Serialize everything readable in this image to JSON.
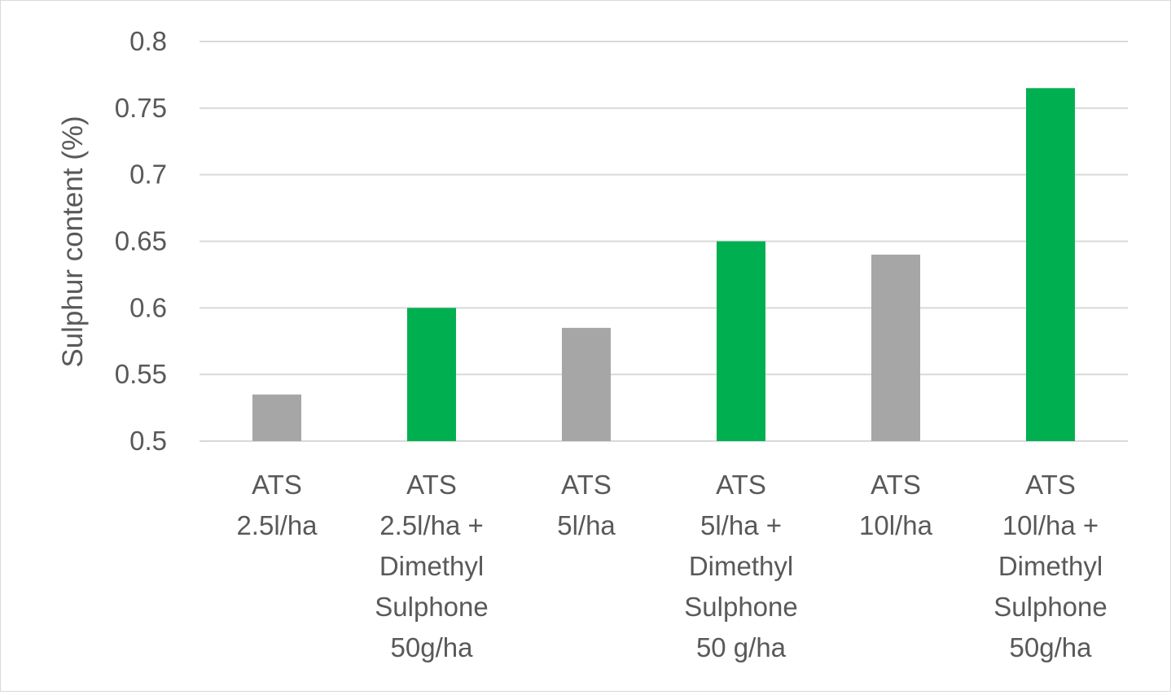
{
  "chart_data": {
    "type": "bar",
    "title": "",
    "xlabel": "",
    "ylabel": "Sulphur content (%)",
    "ylim": [
      0.5,
      0.8
    ],
    "yticks": [
      "0.5",
      "0.55",
      "0.6",
      "0.65",
      "0.7",
      "0.75",
      "0.8"
    ],
    "grid": true,
    "legend": "none",
    "categories": [
      [
        "ATS",
        "2.5l/ha"
      ],
      [
        "ATS",
        "2.5l/ha +",
        "Dimethyl",
        "Sulphone",
        "50g/ha"
      ],
      [
        "ATS",
        "5l/ha"
      ],
      [
        "ATS",
        "5l/ha +",
        "Dimethyl",
        "Sulphone",
        "50 g/ha"
      ],
      [
        "ATS",
        "10l/ha"
      ],
      [
        "ATS",
        "10l/ha +",
        "Dimethyl",
        "Sulphone",
        "50g/ha"
      ]
    ],
    "values": [
      0.535,
      0.6,
      0.585,
      0.65,
      0.64,
      0.765
    ],
    "colors": [
      "#a6a6a6",
      "#00b050",
      "#a6a6a6",
      "#00b050",
      "#a6a6a6",
      "#00b050"
    ]
  }
}
